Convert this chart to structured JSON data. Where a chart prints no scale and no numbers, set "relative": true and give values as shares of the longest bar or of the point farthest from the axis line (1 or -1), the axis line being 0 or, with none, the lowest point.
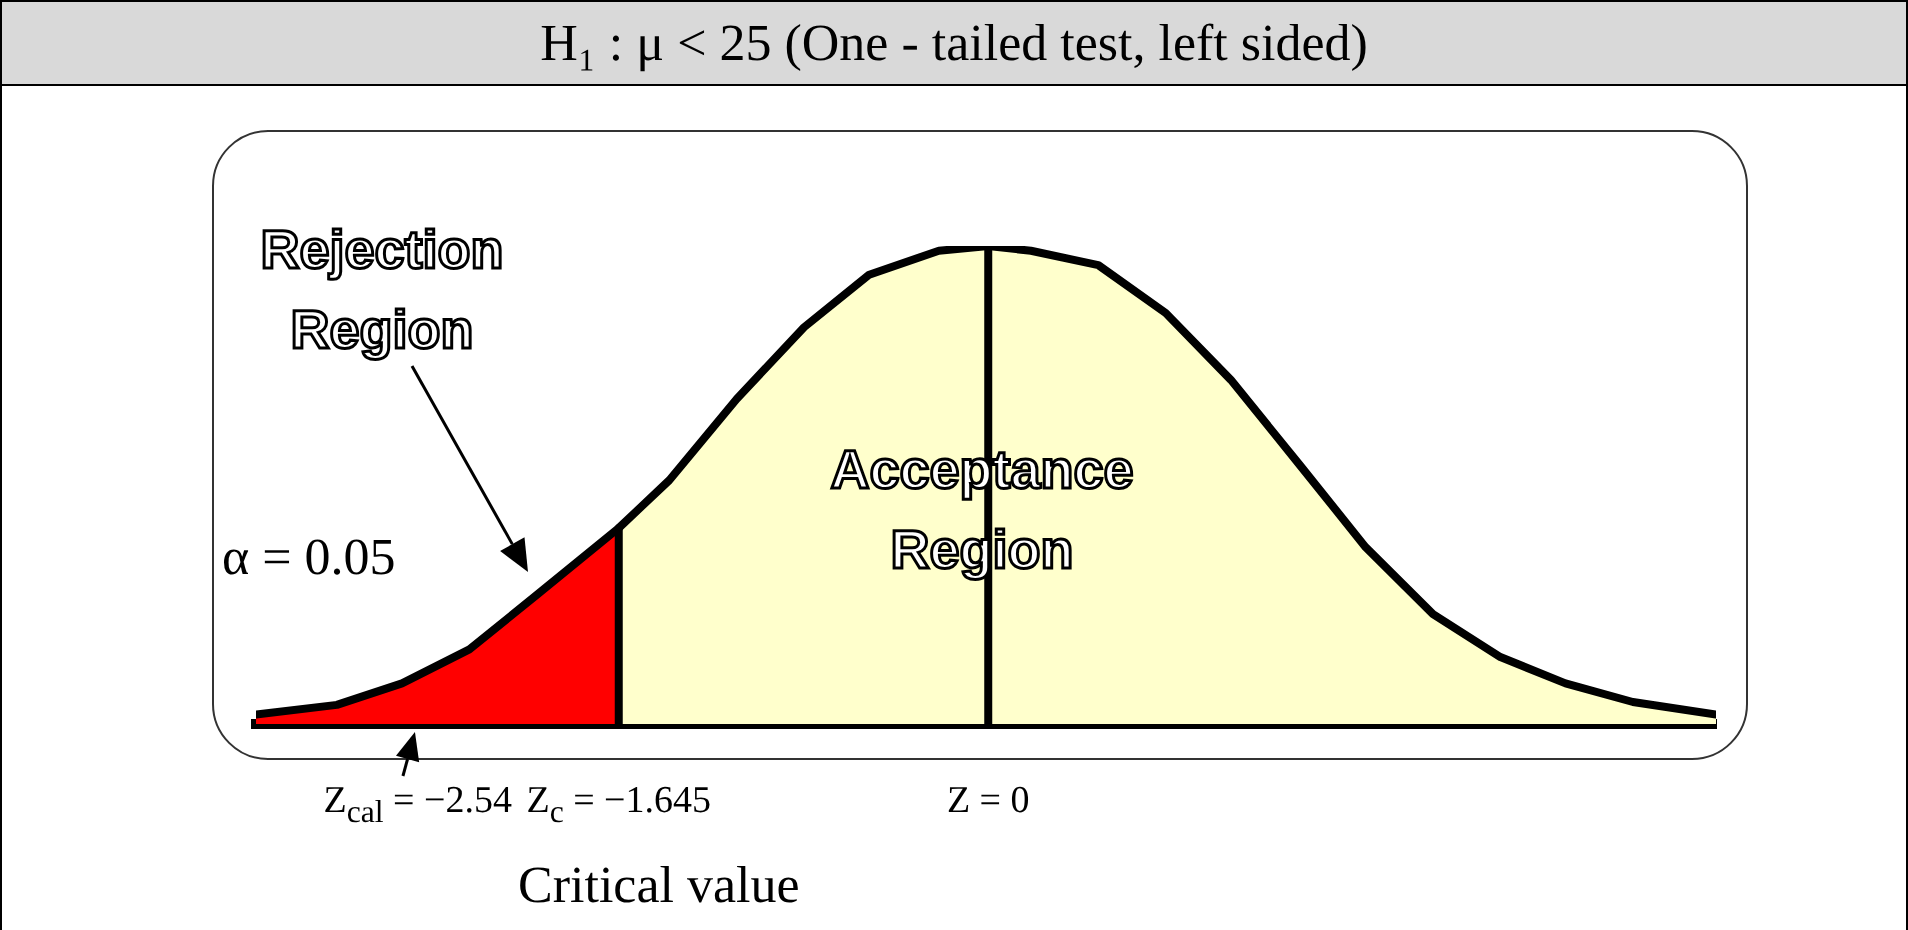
{
  "chart_data": {
    "type": "area",
    "title": "H₁ : μ < 25 (One - tailed test,  left sided)",
    "relative": true,
    "xlim": [
      -3.26,
      3.24
    ],
    "xticks": [
      {
        "value": -2.54,
        "label": "Z$_{cal}$ = −2.54"
      },
      {
        "value": -1.645,
        "label": "Z$_{c}$ = −1.645"
      },
      {
        "value": 0,
        "label": "Z = 0"
      }
    ],
    "marker": "none",
    "series": [
      {
        "color": "#ff0000",
        "x": [
          -3.26,
          -2.9,
          -2.61,
          -2.31,
          -2.01,
          -1.645
        ],
        "values": [
          0.02,
          0.04,
          0.085,
          0.156,
          0.27,
          0.41
        ]
      },
      {
        "color": "#ffffcc",
        "x": [
          -1.645,
          -1.42,
          -1.12,
          -0.82,
          -0.53,
          -0.22,
          0,
          0.19,
          0.49,
          0.79,
          1.08,
          1.39,
          1.68,
          1.98,
          2.28,
          2.57,
          2.87,
          3.24
        ],
        "values": [
          0.41,
          0.51,
          0.68,
          0.83,
          0.94,
          0.99,
          1,
          0.99,
          0.96,
          0.86,
          0.72,
          0.54,
          0.37,
          0.23,
          0.14,
          0.085,
          0.046,
          0.02
        ]
      }
    ],
    "ref_lines": [
      {
        "axis": "x",
        "value": -1.645
      },
      {
        "axis": "x",
        "value": 0
      }
    ],
    "annotations": [
      "Rejection Region",
      "Acceptance Region",
      "α = 0.05",
      "Critical value"
    ]
  }
}
